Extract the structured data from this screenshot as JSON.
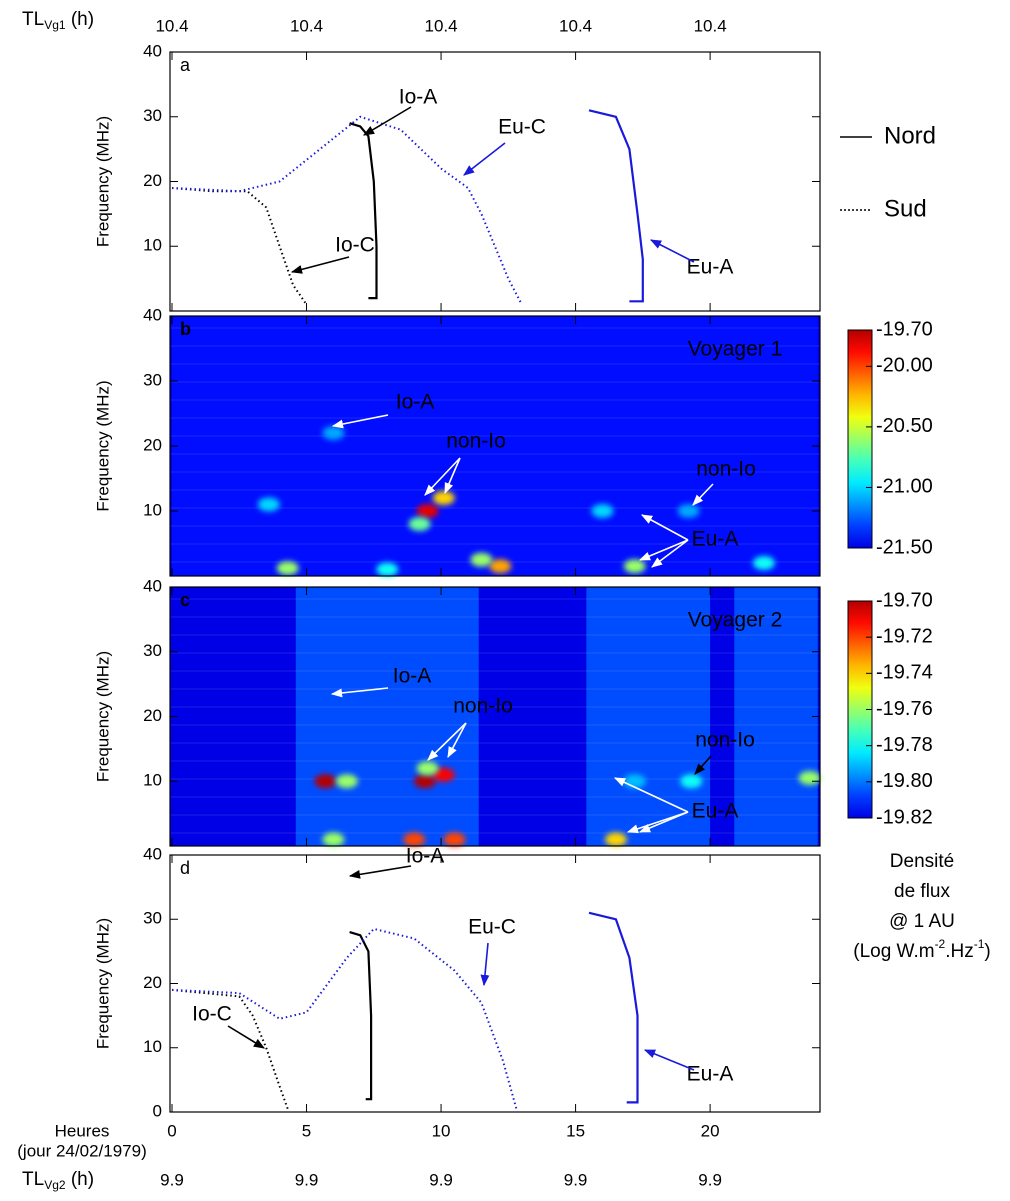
{
  "figure": {
    "x_label": [
      "Heures",
      "(jour 24/02/1979)"
    ],
    "xlim": [
      0,
      24
    ],
    "xticks": [
      0,
      5,
      10,
      15,
      20
    ],
    "top_axis_label": [
      "TL",
      "Vg1",
      " (h)"
    ],
    "top_ticks": [
      {
        "value": 0,
        "label": "10.4"
      },
      {
        "value": 5,
        "label": "10.4"
      },
      {
        "value": 10,
        "label": "10.4"
      },
      {
        "value": 15,
        "label": "10.4"
      },
      {
        "value": 20,
        "label": "10.4"
      }
    ],
    "bottom2_axis_label": [
      "TL",
      "Vg2",
      " (h)"
    ],
    "bottom2_ticks": [
      {
        "value": 0,
        "label": "9.9"
      },
      {
        "value": 5,
        "label": "9.9"
      },
      {
        "value": 10,
        "label": "9.9"
      },
      {
        "value": 15,
        "label": "9.9"
      },
      {
        "value": 20,
        "label": "9.9"
      }
    ],
    "legend": [
      {
        "name": "Nord",
        "dash": "solid"
      },
      {
        "name": "Sud",
        "dash": "dotted"
      }
    ],
    "colorbar_label": [
      "Densité",
      "de flux",
      "@ 1 AU"
    ],
    "colorbar_unit": [
      "(Log W.m",
      "-2",
      ".Hz",
      "-1",
      ")"
    ]
  },
  "chart_data": [
    {
      "type": "line",
      "label": "a",
      "y_label": "Frequency (MHz)",
      "ylim": [
        0,
        40
      ],
      "yticks": [
        10,
        20,
        30,
        40
      ],
      "series": [
        {
          "name": "Io-A",
          "color": "#000000",
          "style": "solid",
          "x": [
            6.6,
            7.0,
            7.3,
            7.5,
            7.6,
            7.6,
            7.3
          ],
          "y": [
            29,
            28.5,
            27,
            20,
            10,
            2,
            2
          ]
        },
        {
          "name": "Io-C",
          "color": "#000000",
          "style": "dotted",
          "x": [
            0,
            1.5,
            2.8,
            3.5,
            4.0,
            4.5,
            5.0
          ],
          "y": [
            19,
            18.5,
            18.5,
            16,
            10,
            4,
            1
          ]
        },
        {
          "name": "Eu-C",
          "color": "#1a1adc",
          "style": "dotted",
          "x": [
            0,
            2.5,
            4,
            5.5,
            7,
            8.5,
            10,
            11,
            11.5,
            12,
            12.5,
            13
          ],
          "y": [
            19,
            18.5,
            20,
            25,
            30,
            28,
            22,
            19,
            15,
            10,
            5,
            1
          ]
        },
        {
          "name": "Eu-A",
          "color": "#1a1adc",
          "style": "solid",
          "x": [
            15.5,
            16.5,
            17,
            17.3,
            17.5,
            17.5,
            17.0
          ],
          "y": [
            31,
            30,
            25,
            15,
            8,
            1.5,
            1.5
          ]
        }
      ]
    },
    {
      "type": "heatmap",
      "label": "b",
      "title": "Voyager 1",
      "y_label": "Frequency (MHz)",
      "ylim": [
        0,
        40
      ],
      "yticks": [
        10,
        20,
        30,
        40
      ],
      "colorbar": {
        "lim": [
          -21.5,
          -19.7
        ],
        "ticks": [
          {
            "value": -19.7,
            "label": "-19.70"
          },
          {
            "value": -20.0,
            "label": "-20.00"
          },
          {
            "value": -20.5,
            "label": "-20.50"
          },
          {
            "value": -21.0,
            "label": "-21.00"
          },
          {
            "value": -21.5,
            "label": "-21.50"
          }
        ]
      },
      "background": -21.42,
      "coverage": [
        [
          0,
          24
        ]
      ],
      "bursts": [
        [
          9.5,
          10,
          -19.8
        ],
        [
          10.1,
          12,
          -20.3
        ],
        [
          9.2,
          8,
          -20.7
        ],
        [
          4.3,
          1.2,
          -20.6
        ],
        [
          12.2,
          1.5,
          -20.2
        ],
        [
          11.5,
          2.5,
          -20.6
        ],
        [
          8,
          1,
          -20.9
        ],
        [
          17.2,
          1.5,
          -20.6
        ],
        [
          22,
          2,
          -20.9
        ],
        [
          3.6,
          11,
          -21.0
        ],
        [
          6,
          22,
          -21.1
        ],
        [
          16,
          10,
          -21.0
        ],
        [
          19.2,
          10,
          -21.1
        ]
      ],
      "annotations": [
        {
          "text": "Io-A",
          "color": "#ffffff"
        },
        {
          "text": "non-Io",
          "color": "#ffffff"
        },
        {
          "text": "non-Io",
          "color": "#ffffff"
        },
        {
          "text": "Eu-A",
          "color": "#ffffff"
        }
      ]
    },
    {
      "type": "heatmap",
      "label": "c",
      "title": "Voyager 2",
      "y_label": "Frequency (MHz)",
      "ylim": [
        0,
        40
      ],
      "yticks": [
        10,
        20,
        30,
        40
      ],
      "colorbar": {
        "lim": [
          -19.82,
          -19.7
        ],
        "ticks": [
          {
            "value": -19.7,
            "label": "-19.70"
          },
          {
            "value": -19.72,
            "label": "-19.72"
          },
          {
            "value": -19.74,
            "label": "-19.74"
          },
          {
            "value": -19.76,
            "label": "-19.76"
          },
          {
            "value": -19.78,
            "label": "-19.78"
          },
          {
            "value": -19.8,
            "label": "-19.80"
          },
          {
            "value": -19.82,
            "label": "-19.82"
          }
        ]
      },
      "background": -19.806,
      "coverage": [
        [
          4.6,
          11.4
        ],
        [
          15.4,
          20
        ],
        [
          20.9,
          24
        ]
      ],
      "bursts": [
        [
          5.7,
          10,
          -19.7
        ],
        [
          6.5,
          10,
          -19.76
        ],
        [
          9.4,
          10,
          -19.7
        ],
        [
          10.1,
          11,
          -19.71
        ],
        [
          9.5,
          12,
          -19.76
        ],
        [
          6,
          1,
          -19.76
        ],
        [
          9,
          1,
          -19.72
        ],
        [
          10.5,
          1,
          -19.72
        ],
        [
          16.5,
          1,
          -19.74
        ],
        [
          17.2,
          10,
          -19.79
        ],
        [
          19.3,
          10,
          -19.78
        ],
        [
          23.7,
          10.5,
          -19.76
        ]
      ],
      "annotations": [
        {
          "text": "Io-A",
          "color": "#ffffff"
        },
        {
          "text": "non-Io",
          "color": "#ffffff"
        },
        {
          "text": "non-Io",
          "color": "#ffffff"
        },
        {
          "text": "Eu-A",
          "color": "#ffffff"
        }
      ]
    },
    {
      "type": "line",
      "label": "d",
      "y_label": "Frequency (MHz)",
      "ylim": [
        0,
        40
      ],
      "yticks": [
        0,
        10,
        20,
        30,
        40
      ],
      "series": [
        {
          "name": "Io-A",
          "color": "#000000",
          "style": "solid",
          "x": [
            6.6,
            7.0,
            7.3,
            7.4,
            7.4,
            7.2
          ],
          "y": [
            28,
            27.5,
            25,
            15,
            2,
            2
          ]
        },
        {
          "name": "Io-C",
          "color": "#000000",
          "style": "dotted",
          "x": [
            0,
            2.5,
            3.0,
            3.5,
            4.0,
            4.3
          ],
          "y": [
            19,
            18,
            15,
            10,
            4,
            0.5
          ]
        },
        {
          "name": "Eu-C",
          "color": "#1a1adc",
          "style": "dotted",
          "x": [
            0,
            2.5,
            4,
            5,
            6.5,
            7.5,
            9,
            10.5,
            11.5,
            12.3,
            12.8
          ],
          "y": [
            19,
            18.5,
            14.5,
            15.5,
            24,
            28.5,
            27,
            22,
            17,
            8,
            0.5
          ]
        },
        {
          "name": "Eu-A",
          "color": "#1a1adc",
          "style": "solid",
          "x": [
            15.5,
            16.5,
            17,
            17.3,
            17.3,
            16.9
          ],
          "y": [
            31,
            30,
            24,
            15,
            1.5,
            1.5
          ]
        }
      ]
    }
  ]
}
